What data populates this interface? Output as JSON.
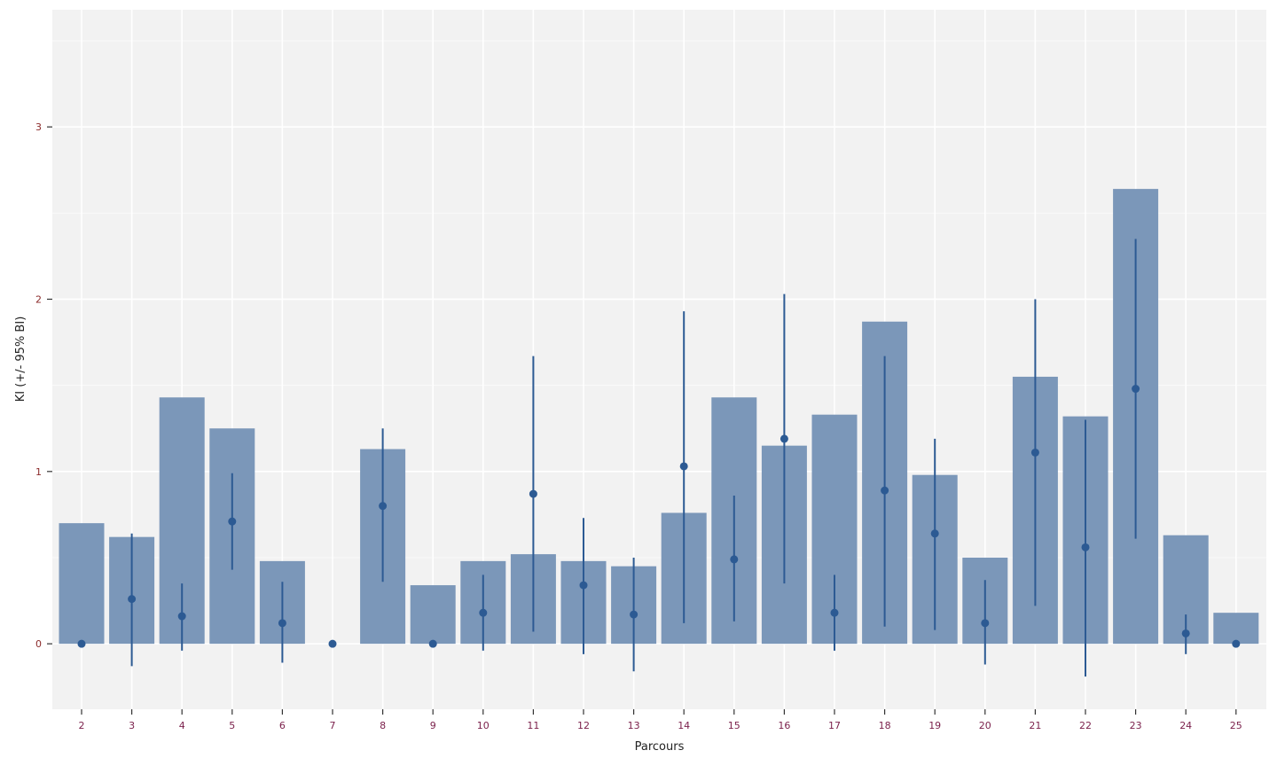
{
  "chart_data": {
    "type": "bar",
    "xlabel": "Parcours",
    "ylabel": "KI (+/- 95% BI)",
    "ylim": [
      -0.38,
      3.68
    ],
    "yticks": [
      0,
      1,
      2,
      3
    ],
    "grid": true,
    "colors": {
      "panel": "#f2f2f2",
      "grid_major": "#ffffff",
      "bar": "#7b97b9",
      "point": "#2c5a93",
      "errorbar": "#2c5a93",
      "tick_y": "#8b2a2a",
      "tick_x": "#7a1f4a"
    },
    "categories": [
      "2",
      "3",
      "4",
      "5",
      "6",
      "7",
      "8",
      "9",
      "10",
      "11",
      "12",
      "13",
      "14",
      "15",
      "16",
      "17",
      "18",
      "19",
      "20",
      "21",
      "22",
      "23",
      "24",
      "25"
    ],
    "series": [
      {
        "kind": "bar",
        "values": [
          0.7,
          0.62,
          1.43,
          1.25,
          0.48,
          0.0,
          1.13,
          0.34,
          0.48,
          0.52,
          0.48,
          0.45,
          0.76,
          1.43,
          1.15,
          1.33,
          1.87,
          0.98,
          0.5,
          1.55,
          1.32,
          2.64,
          0.63,
          0.18
        ]
      },
      {
        "kind": "point_errorbar",
        "values": [
          0.0,
          0.26,
          0.16,
          0.71,
          0.12,
          0.0,
          0.8,
          0.0,
          0.18,
          0.87,
          0.34,
          0.17,
          1.03,
          0.49,
          1.19,
          0.18,
          0.89,
          0.64,
          0.12,
          1.11,
          0.56,
          1.48,
          0.06,
          0.0
        ],
        "lower": [
          0.0,
          -0.13,
          -0.04,
          0.43,
          -0.11,
          0.0,
          0.36,
          0.0,
          -0.04,
          0.07,
          -0.06,
          -0.16,
          0.12,
          0.13,
          0.35,
          -0.04,
          0.1,
          0.08,
          -0.12,
          0.22,
          -0.19,
          0.61,
          -0.06,
          0.0
        ],
        "upper": [
          0.0,
          0.64,
          0.35,
          0.99,
          0.36,
          0.0,
          1.25,
          0.0,
          0.4,
          1.67,
          0.73,
          0.5,
          1.93,
          0.86,
          2.03,
          0.4,
          1.67,
          1.19,
          0.37,
          2.0,
          1.3,
          2.35,
          0.17,
          0.0
        ]
      }
    ]
  }
}
